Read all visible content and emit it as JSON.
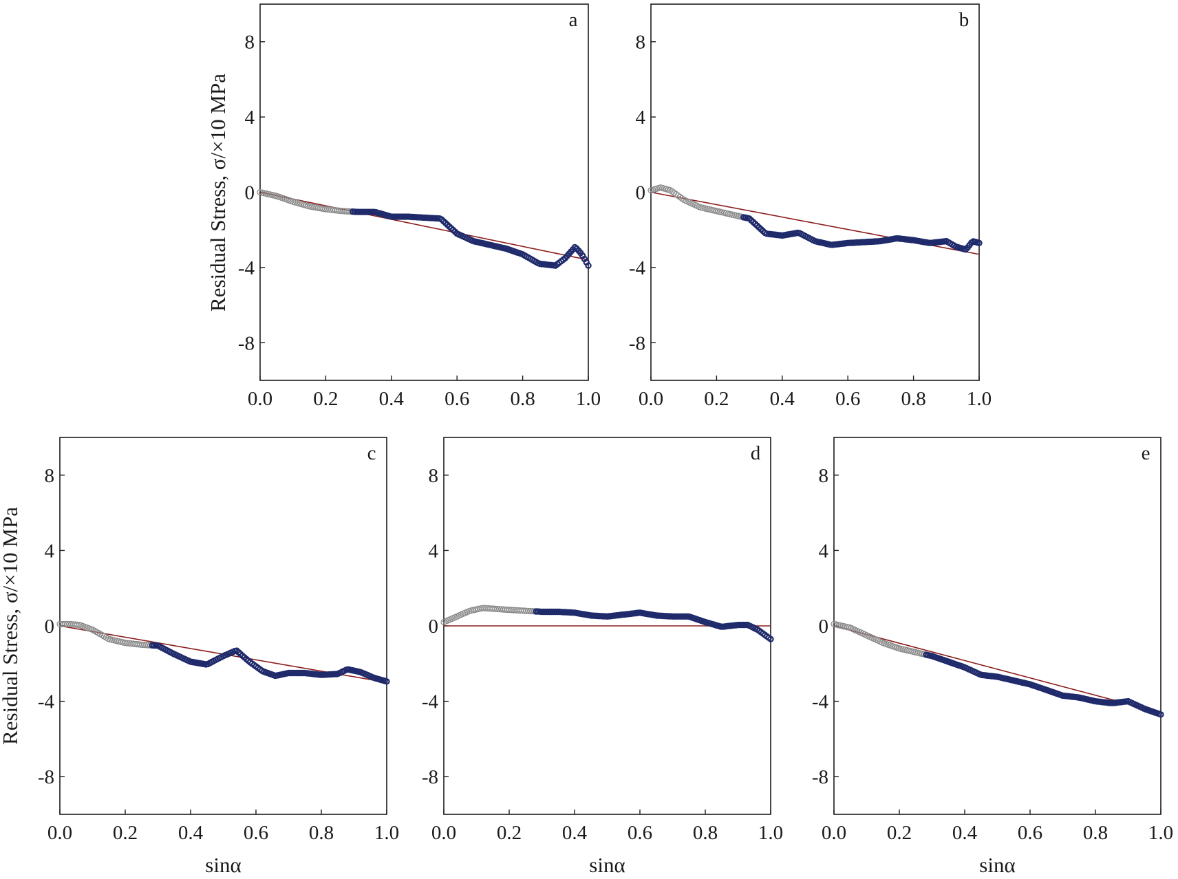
{
  "figure": {
    "ylabel": "Residual Stress, σ/×10 MPa",
    "xlabel": "sinα"
  },
  "chart_data": [
    {
      "type": "scatter",
      "panel": "a",
      "xlim": [
        0.0,
        1.0
      ],
      "ylim": [
        -10,
        10
      ],
      "xticks": [
        "0.0",
        "0.2",
        "0.4",
        "0.6",
        "0.8",
        "1.0"
      ],
      "yticks": [
        "8",
        "4",
        "0",
        "-4",
        "-8"
      ],
      "ylabel": "Residual Stress, σ/×10 MPa",
      "xlabel": "",
      "grid": false,
      "colors": {
        "early": "#8a8a8a",
        "late": "#1f2a6b",
        "fit": "#8b1c1c"
      },
      "series": [
        {
          "x": [
            0.0,
            0.05,
            0.1,
            0.15,
            0.2,
            0.25,
            0.3,
            0.35,
            0.4,
            0.45,
            0.5,
            0.55,
            0.6,
            0.65,
            0.7,
            0.75,
            0.8,
            0.85,
            0.9,
            0.93,
            0.96,
            0.98,
            1.0
          ],
          "values": [
            0.0,
            -0.2,
            -0.5,
            -0.75,
            -0.9,
            -1.0,
            -1.05,
            -1.05,
            -1.3,
            -1.3,
            -1.35,
            -1.4,
            -2.2,
            -2.6,
            -2.8,
            -3.0,
            -3.3,
            -3.8,
            -3.9,
            -3.5,
            -2.9,
            -3.3,
            -3.9
          ]
        }
      ],
      "fit": {
        "x": [
          0.0,
          1.0
        ],
        "values": [
          0.0,
          -3.6
        ]
      }
    },
    {
      "type": "scatter",
      "panel": "b",
      "xlim": [
        0.0,
        1.0
      ],
      "ylim": [
        -10,
        10
      ],
      "xticks": [
        "0.0",
        "0.2",
        "0.4",
        "0.6",
        "0.8",
        "1.0"
      ],
      "yticks": [
        "8",
        "4",
        "0",
        "-4",
        "-8"
      ],
      "ylabel": "",
      "xlabel": "",
      "grid": false,
      "colors": {
        "early": "#8a8a8a",
        "late": "#1f2a6b",
        "fit": "#8b1c1c"
      },
      "series": [
        {
          "x": [
            0.0,
            0.03,
            0.06,
            0.1,
            0.15,
            0.2,
            0.25,
            0.3,
            0.35,
            0.4,
            0.45,
            0.5,
            0.55,
            0.6,
            0.65,
            0.7,
            0.75,
            0.8,
            0.85,
            0.9,
            0.93,
            0.96,
            0.98,
            1.0
          ],
          "values": [
            0.1,
            0.25,
            0.1,
            -0.4,
            -0.8,
            -1.0,
            -1.2,
            -1.4,
            -2.2,
            -2.3,
            -2.15,
            -2.6,
            -2.8,
            -2.7,
            -2.65,
            -2.6,
            -2.45,
            -2.55,
            -2.7,
            -2.6,
            -2.9,
            -3.05,
            -2.6,
            -2.7
          ]
        }
      ],
      "fit": {
        "x": [
          0.0,
          1.0
        ],
        "values": [
          0.0,
          -3.3
        ]
      }
    },
    {
      "type": "scatter",
      "panel": "c",
      "xlim": [
        0.0,
        1.0
      ],
      "ylim": [
        -10,
        10
      ],
      "xticks": [
        "0.0",
        "0.2",
        "0.4",
        "0.6",
        "0.8",
        "1.0"
      ],
      "yticks": [
        "8",
        "4",
        "0",
        "-4",
        "-8"
      ],
      "ylabel": "Residual Stress, σ/×10 MPa",
      "xlabel": "sinα",
      "grid": false,
      "colors": {
        "early": "#8a8a8a",
        "late": "#1f2a6b",
        "fit": "#8b1c1c"
      },
      "series": [
        {
          "x": [
            0.0,
            0.03,
            0.06,
            0.1,
            0.15,
            0.2,
            0.25,
            0.3,
            0.35,
            0.4,
            0.45,
            0.5,
            0.54,
            0.58,
            0.62,
            0.66,
            0.7,
            0.75,
            0.8,
            0.85,
            0.88,
            0.92,
            0.96,
            1.0
          ],
          "values": [
            0.1,
            0.1,
            0.05,
            -0.2,
            -0.7,
            -0.9,
            -1.0,
            -1.05,
            -1.5,
            -1.9,
            -2.05,
            -1.6,
            -1.3,
            -1.9,
            -2.4,
            -2.65,
            -2.5,
            -2.5,
            -2.6,
            -2.55,
            -2.3,
            -2.45,
            -2.75,
            -2.95
          ]
        }
      ],
      "fit": {
        "x": [
          0.0,
          1.0
        ],
        "values": [
          0.0,
          -3.0
        ]
      }
    },
    {
      "type": "scatter",
      "panel": "d",
      "xlim": [
        0.0,
        1.0
      ],
      "ylim": [
        -10,
        10
      ],
      "xticks": [
        "0.0",
        "0.2",
        "0.4",
        "0.6",
        "0.8",
        "1.0"
      ],
      "yticks": [
        "8",
        "4",
        "0",
        "-4",
        "-8"
      ],
      "ylabel": "",
      "xlabel": "sinα",
      "grid": false,
      "colors": {
        "early": "#8a8a8a",
        "late": "#1f2a6b",
        "fit": "#8b1c1c"
      },
      "series": [
        {
          "x": [
            0.0,
            0.04,
            0.08,
            0.12,
            0.16,
            0.2,
            0.25,
            0.3,
            0.35,
            0.4,
            0.45,
            0.5,
            0.55,
            0.6,
            0.65,
            0.7,
            0.75,
            0.8,
            0.85,
            0.9,
            0.93,
            0.96,
            1.0
          ],
          "values": [
            0.2,
            0.5,
            0.8,
            0.95,
            0.9,
            0.85,
            0.8,
            0.75,
            0.75,
            0.7,
            0.55,
            0.5,
            0.6,
            0.7,
            0.55,
            0.5,
            0.5,
            0.2,
            -0.05,
            0.05,
            0.05,
            -0.2,
            -0.7
          ]
        }
      ],
      "fit": {
        "x": [
          0.0,
          1.0
        ],
        "values": [
          0.0,
          0.0
        ]
      }
    },
    {
      "type": "scatter",
      "panel": "e",
      "xlim": [
        0.0,
        1.0
      ],
      "ylim": [
        -10,
        10
      ],
      "xticks": [
        "0.0",
        "0.2",
        "0.4",
        "0.6",
        "0.8",
        "1.0"
      ],
      "yticks": [
        "8",
        "4",
        "0",
        "-4",
        "-8"
      ],
      "ylabel": "",
      "xlabel": "sinα",
      "grid": false,
      "colors": {
        "early": "#8a8a8a",
        "late": "#1f2a6b",
        "fit": "#8b1c1c"
      },
      "series": [
        {
          "x": [
            0.0,
            0.05,
            0.1,
            0.15,
            0.2,
            0.25,
            0.3,
            0.35,
            0.4,
            0.45,
            0.5,
            0.55,
            0.6,
            0.65,
            0.7,
            0.75,
            0.8,
            0.85,
            0.9,
            0.95,
            1.0
          ],
          "values": [
            0.1,
            -0.1,
            -0.5,
            -0.9,
            -1.2,
            -1.4,
            -1.6,
            -1.9,
            -2.2,
            -2.6,
            -2.7,
            -2.9,
            -3.1,
            -3.4,
            -3.7,
            -3.8,
            -4.0,
            -4.1,
            -4.0,
            -4.4,
            -4.7
          ]
        }
      ],
      "fit": {
        "x": [
          0.0,
          1.0
        ],
        "values": [
          0.0,
          -4.6
        ]
      }
    }
  ]
}
